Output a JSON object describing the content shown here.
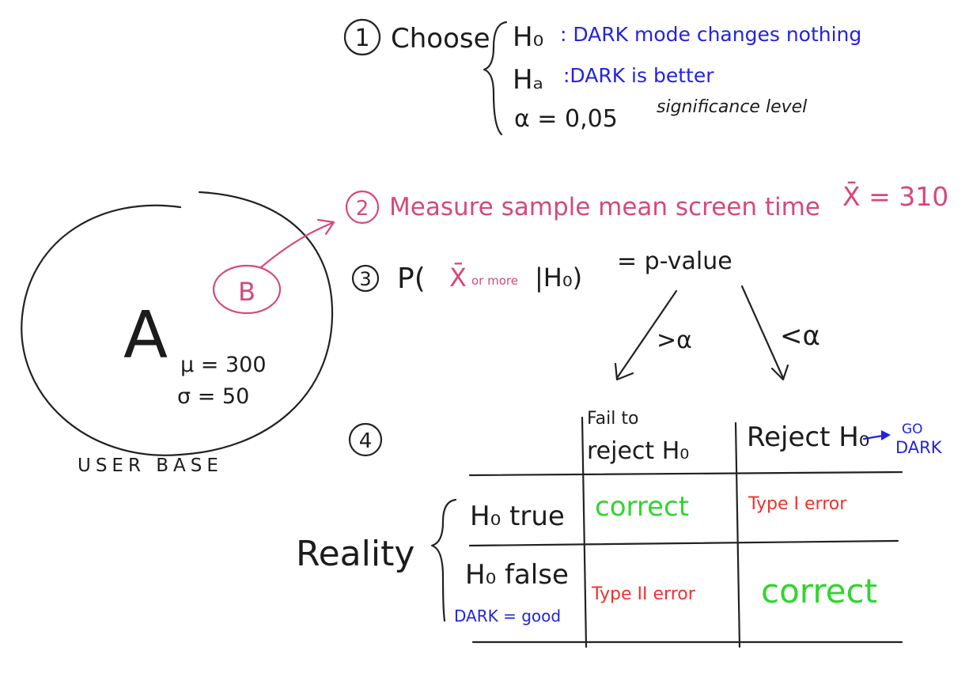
{
  "step1": {
    "number": "1",
    "label": "Choose",
    "h0_symbol": "H₀",
    "h0_text": ": DARK mode changes nothing",
    "ha_symbol": "Hₐ",
    "ha_text": ":DARK is better",
    "alpha": "α = 0,05",
    "alpha_note": "significance level"
  },
  "step2": {
    "number": "2",
    "text": "Measure sample mean screen time",
    "xbar_eq": "X̄ = 310"
  },
  "step3": {
    "number": "3",
    "prefix": "P(",
    "xbar": "X̄",
    "or_more": "or more",
    "given": "|H₀)",
    "equals": "= p-value",
    "branch_left": ">α",
    "branch_right": "<α"
  },
  "population": {
    "big_label": "A",
    "sample_label": "B",
    "mu": "μ = 300",
    "sigma": "σ = 50",
    "caption": "USER BASE"
  },
  "step4": {
    "number": "4",
    "col_fail_1": "Fail to",
    "col_fail_2": "reject H₀",
    "col_reject": "Reject H₀",
    "go_dark_1": "GO",
    "go_dark_2": "DARK",
    "reality": "Reality",
    "row_true": "H₀ true",
    "row_false": "H₀ false",
    "row_false_note": "DARK = good",
    "cell_true_fail": "correct",
    "cell_true_reject": "Type I error",
    "cell_false_fail": "Type II error",
    "cell_false_reject": "correct"
  },
  "colors": {
    "ink": "#222222",
    "blue": "#2323e0",
    "pink": "#d6497a",
    "red": "#f03030",
    "green": "#2fd62f"
  }
}
